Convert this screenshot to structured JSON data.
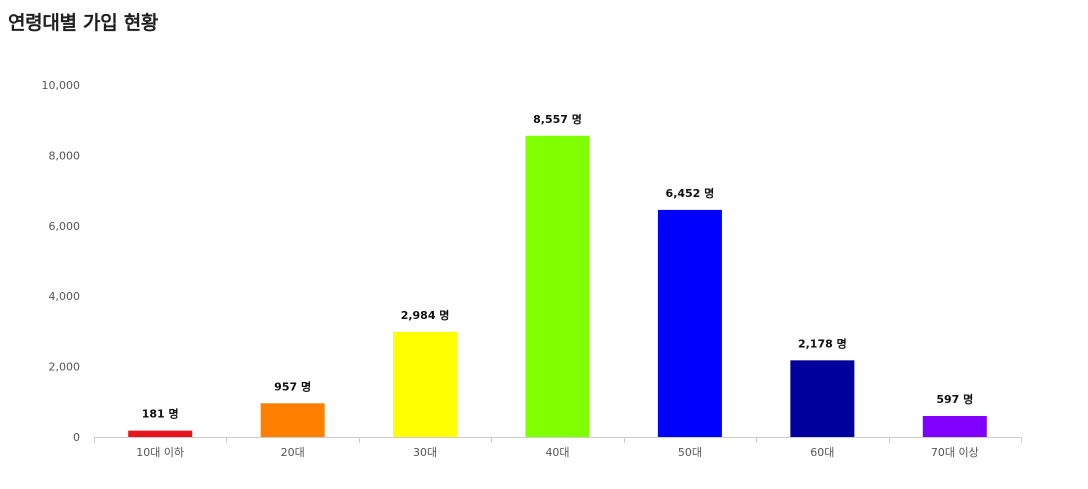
{
  "chart_data": {
    "type": "bar",
    "title": "연령대별 가입 현황",
    "xlabel": "",
    "ylabel": "",
    "ylim": [
      0,
      10000
    ],
    "yticks": [
      0,
      2000,
      4000,
      6000,
      8000,
      10000
    ],
    "ytick_labels": [
      "0",
      "2,000",
      "4,000",
      "6,000",
      "8,000",
      "10,000"
    ],
    "categories": [
      "10대 이하",
      "20대",
      "30대",
      "40대",
      "50대",
      "60대",
      "70대 이상"
    ],
    "values": [
      181,
      957,
      2984,
      8557,
      6452,
      2178,
      597
    ],
    "data_labels": [
      "181 명",
      "957 명",
      "2,984 명",
      "8,557 명",
      "6,452 명",
      "2,178 명",
      "597 명"
    ],
    "colors": [
      "#e8141e",
      "#ff7f00",
      "#ffff00",
      "#7fff00",
      "#0000ff",
      "#00009c",
      "#8000ff"
    ],
    "grid": false,
    "legend": "none"
  }
}
